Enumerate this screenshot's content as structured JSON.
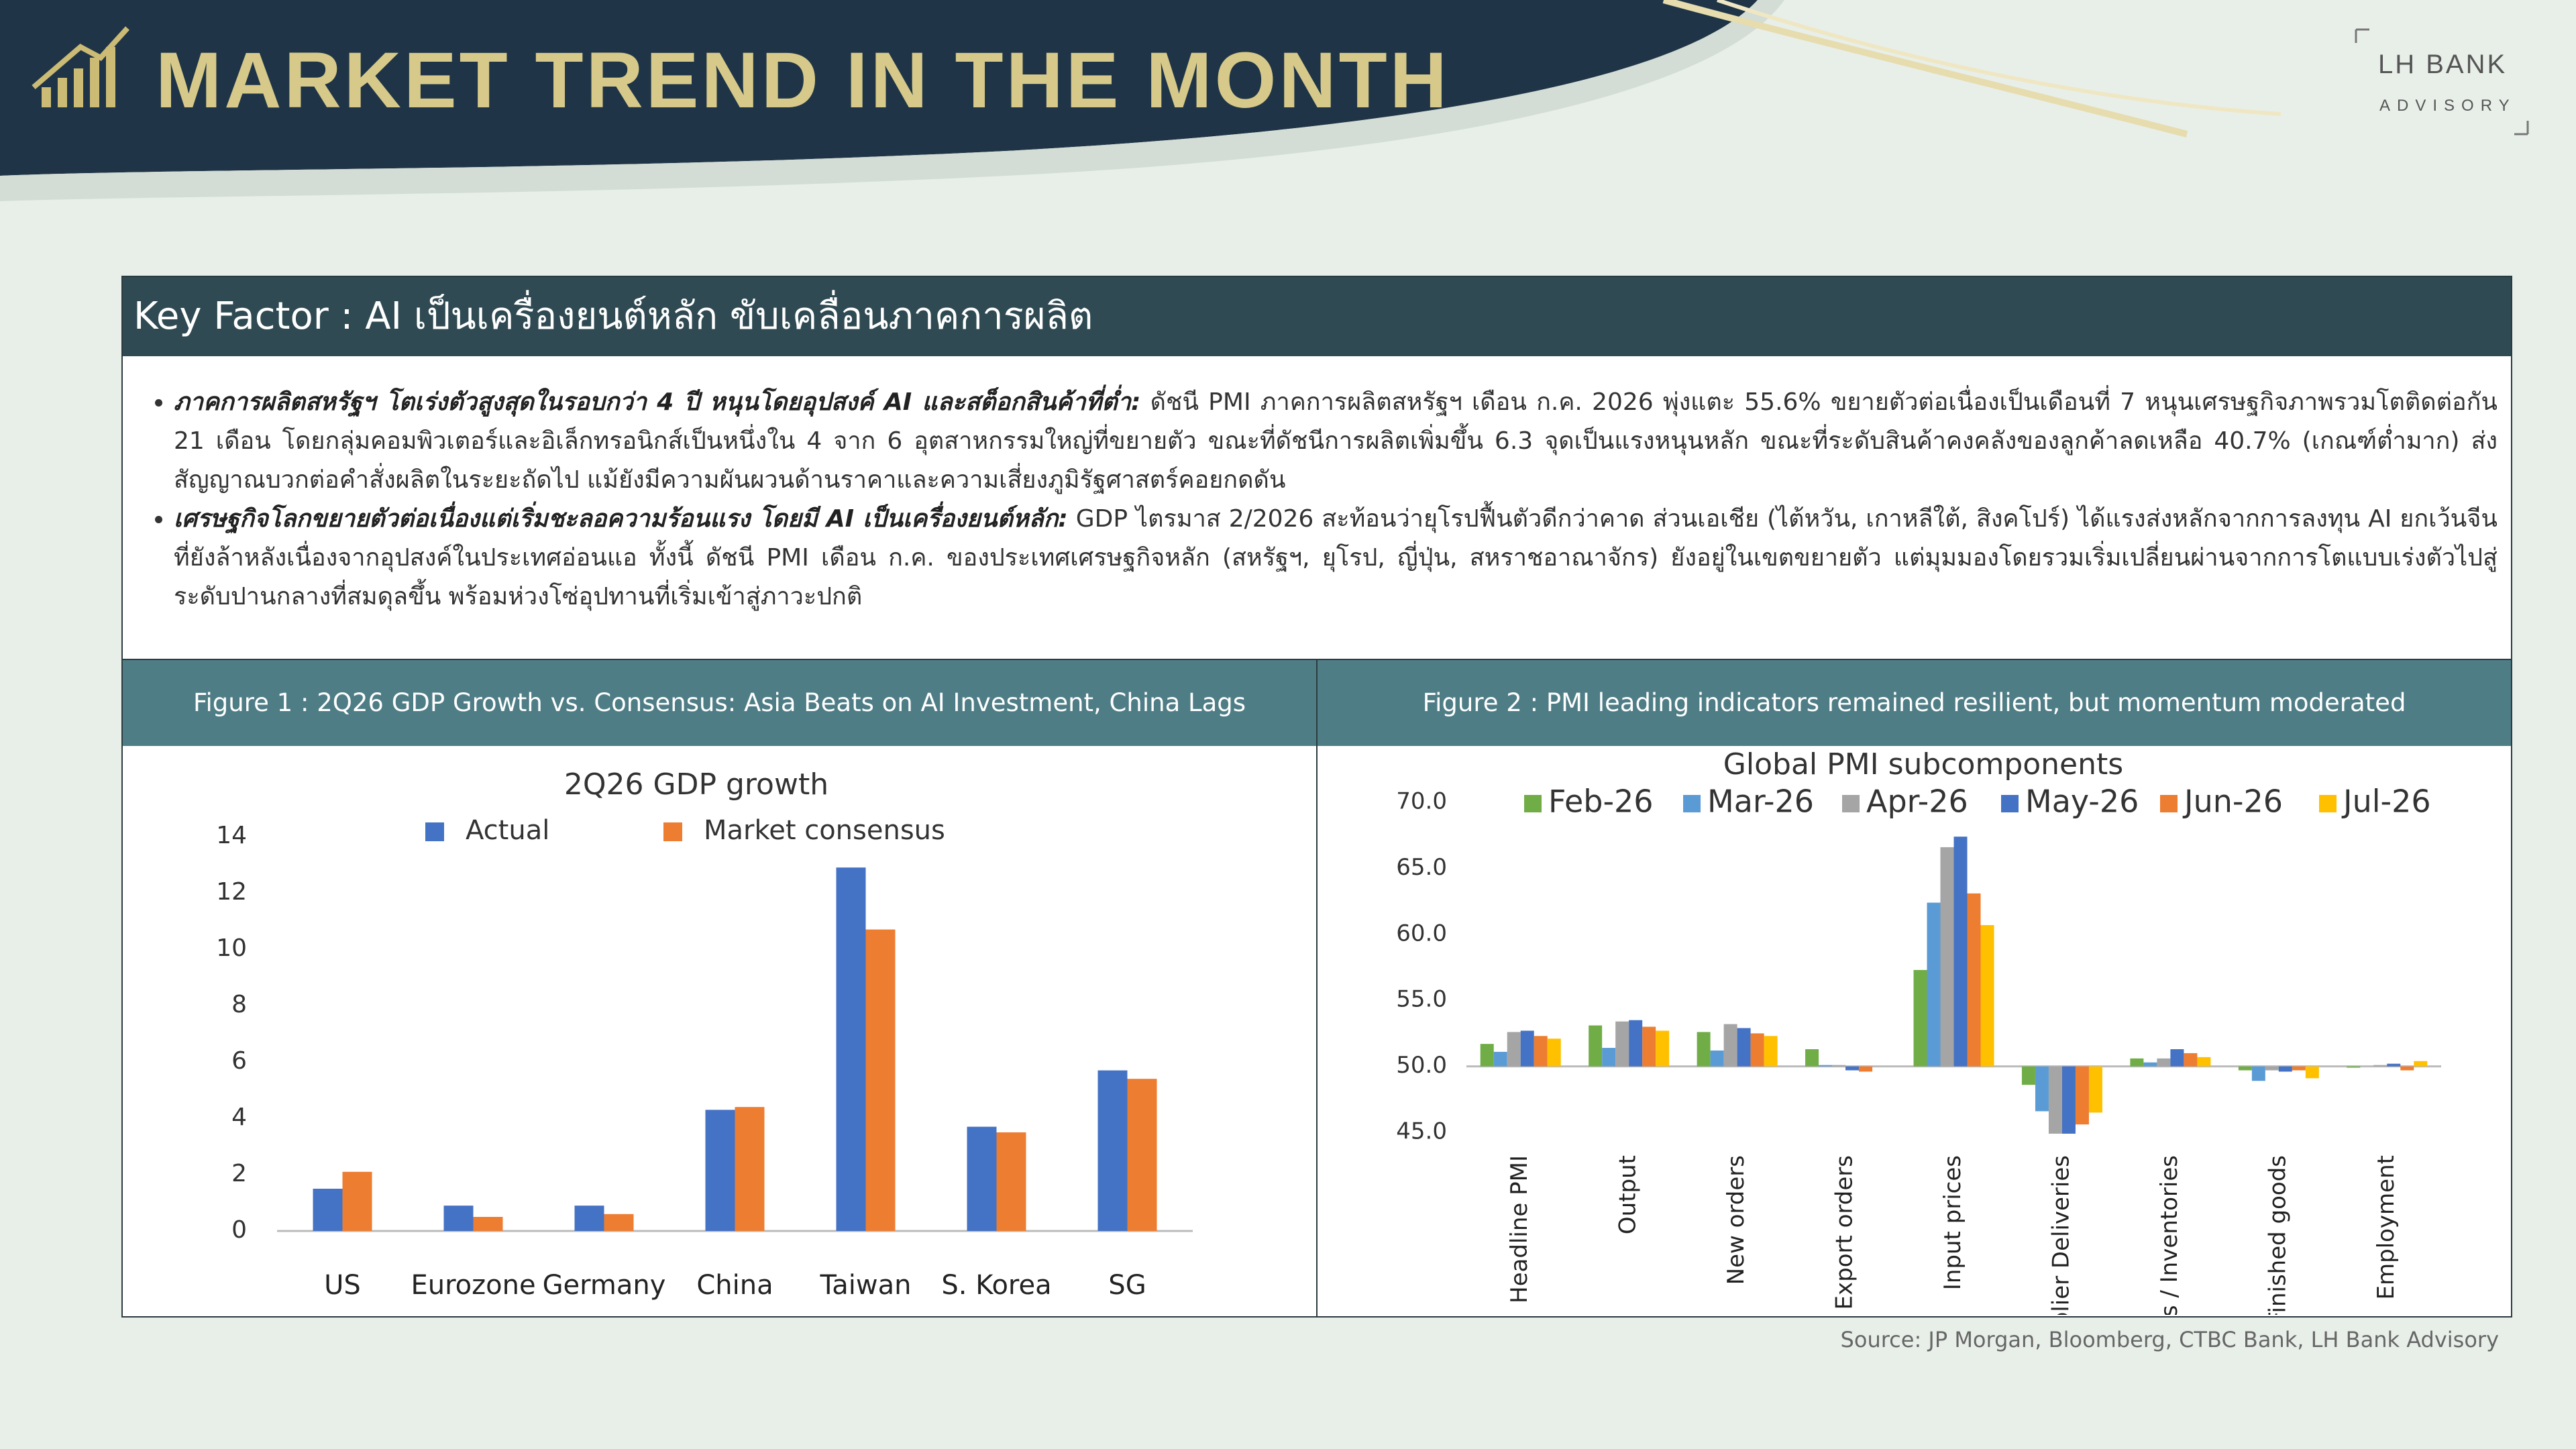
{
  "header": {
    "title": "MARKET TREND IN THE MONTH"
  },
  "logo": {
    "name": "LH BANK",
    "tagline": "ADVISORY"
  },
  "key_factor": {
    "title": "Key Factor : AI เป็นเครื่องยนต์หลัก ขับเคลื่อนภาคการผลิต",
    "bullets": [
      {
        "lead": "ภาคการผลิตสหรัฐฯ โตเร่งตัวสูงสุดในรอบกว่า 4 ปี หนุนโดยอุปสงค์ AI และสต็อกสินค้าที่ต่ำ:",
        "text": "ดัชนี PMI ภาคการผลิตสหรัฐฯ เดือน ก.ค. 2026 พุ่งแตะ 55.6% ขยายตัวต่อเนื่องเป็นเดือนที่ 7 หนุนเศรษฐกิจภาพรวมโตติดต่อกัน 21 เดือน โดยกลุ่มคอมพิวเตอร์และอิเล็กทรอนิกส์เป็นหนึ่งใน 4 จาก 6 อุตสาหกรรมใหญ่ที่ขยายตัว ขณะที่ดัชนีการผลิตเพิ่มขึ้น 6.3 จุดเป็นแรงหนุนหลัก ขณะที่ระดับสินค้าคงคลังของลูกค้าลดเหลือ 40.7% (เกณฑ์ต่ำมาก) ส่งสัญญาณบวกต่อคำสั่งผลิตในระยะถัดไป แม้ยังมีความผันผวนด้านราคาและความเสี่ยงภูมิรัฐศาสตร์คอยกดดัน"
      },
      {
        "lead": "เศรษฐกิจโลกขยายตัวต่อเนื่องแต่เริ่มชะลอความร้อนแรง โดยมี AI เป็นเครื่องยนต์หลัก:",
        "text": "GDP ไตรมาส 2/2026 สะท้อนว่ายุโรปฟื้นตัวดีกว่าคาด ส่วนเอเชีย (ไต้หวัน, เกาหลีใต้, สิงคโปร์) ได้แรงส่งหลักจากการลงทุน AI ยกเว้นจีนที่ยังล้าหลังเนื่องจากอุปสงค์ในประเทศอ่อนแอ ทั้งนี้ ดัชนี PMI เดือน ก.ค. ของประเทศเศรษฐกิจหลัก (สหรัฐฯ, ยุโรป, ญี่ปุ่น, สหราชอาณาจักร) ยังอยู่ในเขตขยายตัว แต่มุมมองโดยรวมเริ่มเปลี่ยนผ่านจากการโตแบบเร่งตัวไปสู่ระดับปานกลางที่สมดุลขึ้น พร้อมห่วงโซ่อุปทานที่เริ่มเข้าสู่ภาวะปกติ"
      }
    ]
  },
  "figures": [
    {
      "caption": "Figure 1 :  2Q26 GDP Growth vs. Consensus: Asia Beats on AI Investment, China Lags"
    },
    {
      "caption": "Figure 2 : PMI leading indicators remained resilient, but momentum moderated"
    }
  ],
  "chart_data": [
    {
      "type": "bar",
      "title": "2Q26 GDP growth",
      "categories": [
        "US",
        "Eurozone",
        "Germany",
        "China",
        "Taiwan",
        "S. Korea",
        "SG"
      ],
      "series": [
        {
          "name": "Actual",
          "color": "#4472c4",
          "values": [
            1.5,
            0.9,
            0.9,
            4.3,
            12.9,
            3.7,
            5.7
          ]
        },
        {
          "name": "Market consensus",
          "color": "#ed7d31",
          "values": [
            2.1,
            0.5,
            0.6,
            4.4,
            10.7,
            3.5,
            5.4
          ]
        }
      ],
      "ylim": [
        0,
        14
      ],
      "yticks": [
        0,
        2,
        4,
        6,
        8,
        10,
        12,
        14
      ],
      "grid": false
    },
    {
      "type": "bar",
      "title": "Global PMI subcomponents",
      "categories": [
        "Headline PMI",
        "Output",
        "New orders",
        "Export orders",
        "Input prices",
        "Supplier Deliveries",
        "Stocks / Inventories",
        "Finished goods",
        "Employment"
      ],
      "series": [
        {
          "name": "Feb-26",
          "color": "#70ad47",
          "values": [
            51.7,
            53.1,
            52.6,
            51.3,
            57.3,
            48.6,
            50.6,
            49.7,
            49.9
          ]
        },
        {
          "name": "Mar-26",
          "color": "#5b9bd5",
          "values": [
            51.1,
            51.4,
            51.2,
            50.1,
            62.4,
            46.6,
            50.3,
            48.9,
            50.0
          ]
        },
        {
          "name": "Apr-26",
          "color": "#a5a5a5",
          "values": [
            52.6,
            53.4,
            53.2,
            50.1,
            66.6,
            44.9,
            50.6,
            49.7,
            50.1
          ]
        },
        {
          "name": "May-26",
          "color": "#4472c4",
          "values": [
            52.7,
            53.5,
            52.9,
            49.7,
            67.4,
            44.9,
            51.3,
            49.6,
            50.2
          ]
        },
        {
          "name": "Jun-26",
          "color": "#ed7d31",
          "values": [
            52.3,
            53.0,
            52.5,
            49.6,
            63.1,
            45.6,
            51.0,
            49.7,
            49.7
          ]
        },
        {
          "name": "Jul-26",
          "color": "#ffc000",
          "values": [
            52.1,
            52.7,
            52.3,
            50.0,
            60.7,
            46.5,
            50.7,
            49.1,
            50.4
          ]
        }
      ],
      "ylim": [
        45,
        70
      ],
      "yticks": [
        {
          "value": 45,
          "label": "45.0"
        },
        {
          "value": 50,
          "label": "50.0"
        },
        {
          "value": 55,
          "label": "55.0"
        },
        {
          "value": 60,
          "label": "60.0"
        },
        {
          "value": 65,
          "label": "65.0"
        },
        {
          "value": 70,
          "label": "70.0"
        }
      ],
      "baseline": 50,
      "grid": false
    }
  ],
  "source": "Source: JP Morgan, Bloomberg, CTBC Bank, LH Bank Advisory"
}
